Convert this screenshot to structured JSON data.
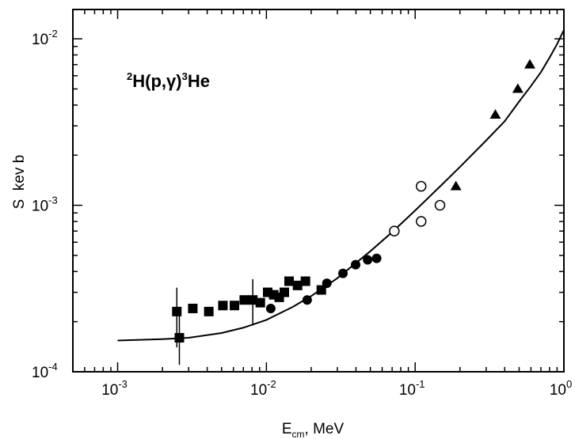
{
  "chart_data": {
    "type": "scatter",
    "xscale": "log",
    "yscale": "log",
    "xlim": [
      0.0005,
      1.0
    ],
    "ylim": [
      0.0001,
      0.015
    ],
    "grid": false,
    "xlabel": {
      "main": "E",
      "sub": "cm",
      "rest": ", MeV"
    },
    "ylabel": "S  kev b",
    "annotation": {
      "sup1": "2",
      "mid": "H(p,",
      "greek": "γ",
      "close": ")",
      "sup2": "3",
      "tail": "He"
    },
    "x_ticks": [
      {
        "value": 0.001,
        "base": "10",
        "exp": "-3"
      },
      {
        "value": 0.01,
        "base": "10",
        "exp": "-2"
      },
      {
        "value": 0.1,
        "base": "10",
        "exp": "-1"
      },
      {
        "value": 1,
        "base": "10",
        "exp": "0"
      }
    ],
    "y_ticks": [
      {
        "value": 0.0001,
        "base": "10",
        "exp": "-4"
      },
      {
        "value": 0.001,
        "base": "10",
        "exp": "-3"
      },
      {
        "value": 0.01,
        "base": "10",
        "exp": "-2"
      }
    ],
    "series": [
      {
        "marker": "filled-square",
        "points": [
          {
            "x": 0.0025,
            "y": 0.00023,
            "err": [
              0.00014,
              0.00032
            ]
          },
          {
            "x": 0.0026,
            "y": 0.00016,
            "err": [
              0.00011,
              0.00023
            ]
          },
          {
            "x": 0.0032,
            "y": 0.00024
          },
          {
            "x": 0.0041,
            "y": 0.00023
          },
          {
            "x": 0.0051,
            "y": 0.00025
          },
          {
            "x": 0.0061,
            "y": 0.00025
          },
          {
            "x": 0.0071,
            "y": 0.00027
          },
          {
            "x": 0.0081,
            "y": 0.00027,
            "err": [
              0.00019,
              0.00036
            ]
          },
          {
            "x": 0.0091,
            "y": 0.00026
          },
          {
            "x": 0.0102,
            "y": 0.0003
          },
          {
            "x": 0.0112,
            "y": 0.00029
          },
          {
            "x": 0.0122,
            "y": 0.00028
          },
          {
            "x": 0.0132,
            "y": 0.0003
          },
          {
            "x": 0.0142,
            "y": 0.00035
          },
          {
            "x": 0.0162,
            "y": 0.00033
          },
          {
            "x": 0.0183,
            "y": 0.00035
          },
          {
            "x": 0.0234,
            "y": 0.00031
          }
        ]
      },
      {
        "marker": "filled-circle",
        "points": [
          {
            "x": 0.0107,
            "y": 0.00024
          },
          {
            "x": 0.0188,
            "y": 0.00027
          },
          {
            "x": 0.0255,
            "y": 0.00034
          },
          {
            "x": 0.0327,
            "y": 0.00039
          },
          {
            "x": 0.0398,
            "y": 0.00044
          },
          {
            "x": 0.0479,
            "y": 0.00047
          },
          {
            "x": 0.0551,
            "y": 0.00048
          }
        ]
      },
      {
        "marker": "open-circle",
        "points": [
          {
            "x": 0.0724,
            "y": 0.0007
          },
          {
            "x": 0.1097,
            "y": 0.0013
          },
          {
            "x": 0.1097,
            "y": 0.0008
          },
          {
            "x": 0.1468,
            "y": 0.001
          }
        ]
      },
      {
        "marker": "filled-triangle",
        "points": [
          {
            "x": 0.188,
            "y": 0.0013
          },
          {
            "x": 0.346,
            "y": 0.0035
          },
          {
            "x": 0.49,
            "y": 0.005
          },
          {
            "x": 0.59,
            "y": 0.007
          }
        ]
      }
    ],
    "curve": {
      "points": [
        [
          0.001,
          0.000154
        ],
        [
          0.002,
          0.000157
        ],
        [
          0.003,
          0.00016
        ],
        [
          0.005,
          0.000171
        ],
        [
          0.007,
          0.000184
        ],
        [
          0.01,
          0.000205
        ],
        [
          0.015,
          0.000245
        ],
        [
          0.02,
          0.000285
        ],
        [
          0.03,
          0.000365
        ],
        [
          0.05,
          0.00053
        ],
        [
          0.07,
          0.00069
        ],
        [
          0.1,
          0.00093
        ],
        [
          0.15,
          0.00132
        ],
        [
          0.2,
          0.0017
        ],
        [
          0.3,
          0.00245
        ],
        [
          0.4,
          0.0032
        ],
        [
          0.5,
          0.0042
        ],
        [
          0.6,
          0.0052
        ],
        [
          0.7,
          0.0063
        ],
        [
          0.8,
          0.0077
        ],
        [
          0.9,
          0.0093
        ],
        [
          1.0,
          0.0113
        ]
      ]
    }
  }
}
